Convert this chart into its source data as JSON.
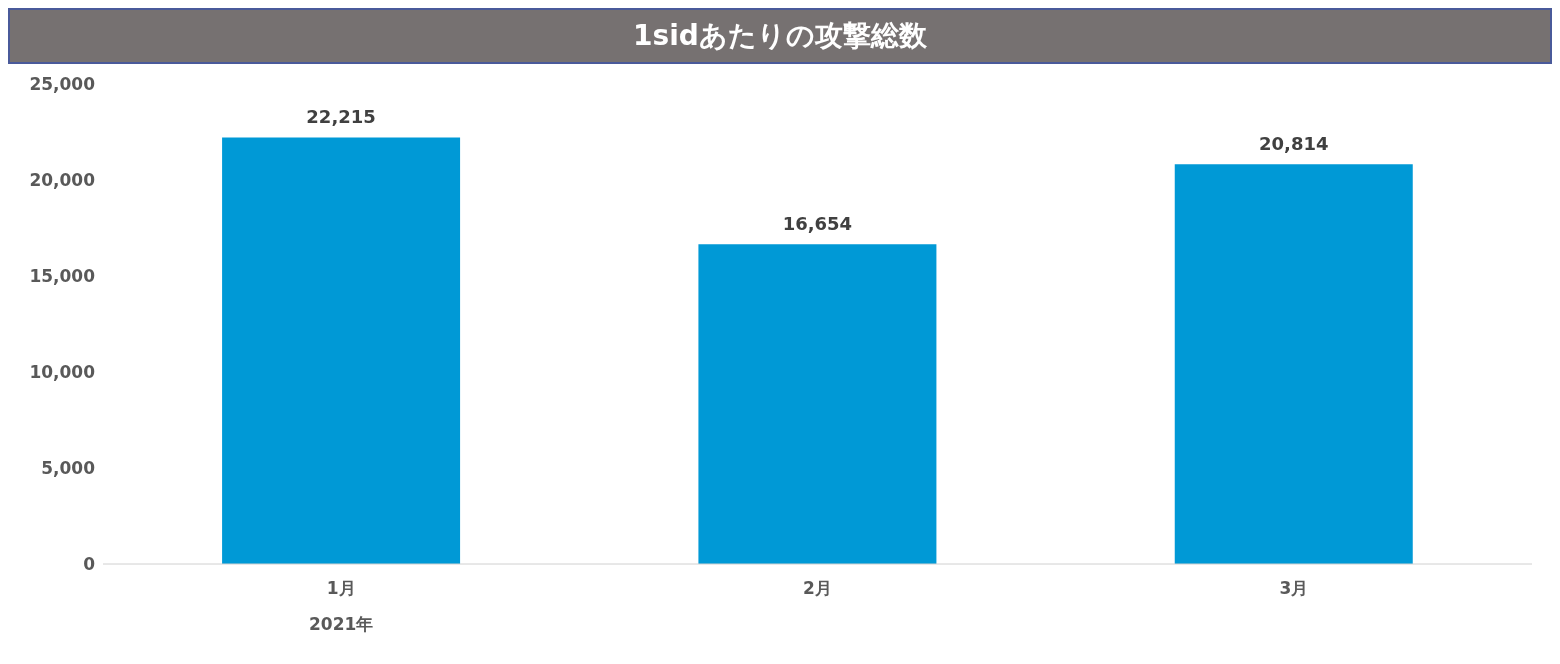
{
  "chart_data": {
    "type": "bar",
    "title": "1sidあたりの攻撃総数",
    "categories": [
      "1月",
      "2月",
      "3月"
    ],
    "values": [
      22215,
      16654,
      20814
    ],
    "value_labels": [
      "22,215",
      "16,654",
      "20,814"
    ],
    "color": "#0099d6",
    "ylim": [
      0,
      25000
    ],
    "yticks": [
      0,
      {
        "value": 5000,
        "label": "5,000"
      },
      {
        "value": 10000,
        "label": "10,000"
      },
      {
        "value": 15000,
        "label": "15,000"
      },
      {
        "value": 20000,
        "label": "20,000"
      },
      {
        "value": 25000,
        "label": "25,000"
      }
    ],
    "grid": false,
    "annotations": [
      "2021年"
    ]
  }
}
